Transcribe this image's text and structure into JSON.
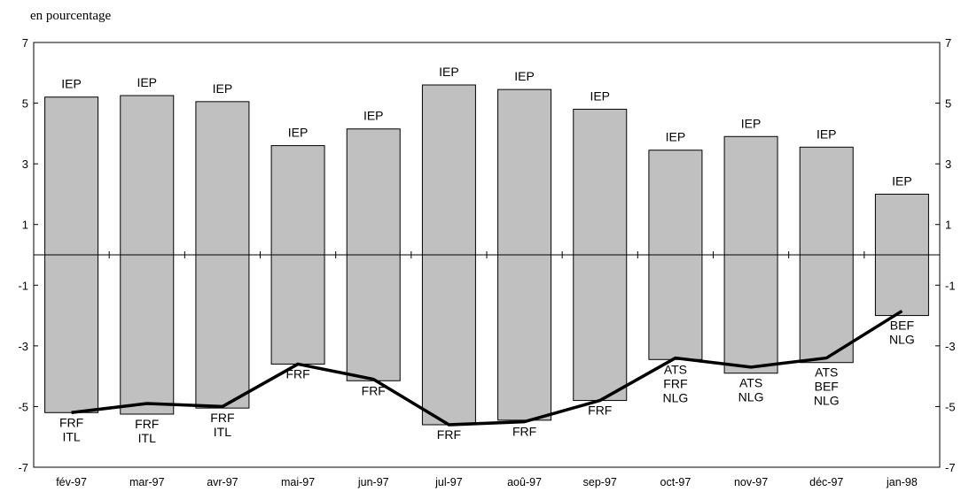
{
  "unit_label": "en pourcentage",
  "chart_data": {
    "type": "bar",
    "title": "",
    "xlabel": "",
    "ylabel": "en pourcentage",
    "ylim": [
      -7,
      7
    ],
    "yticks": [
      7,
      5,
      3,
      1,
      -1,
      -3,
      -5,
      -7
    ],
    "categories": [
      "fév-97",
      "mar-97",
      "avr-97",
      "mai-97",
      "jun-97",
      "jul-97",
      "aoû-97",
      "sep-97",
      "oct-97",
      "nov-97",
      "déc-97",
      "jan-98"
    ],
    "series": [
      {
        "role": "max",
        "values": [
          5.2,
          5.25,
          5.05,
          3.6,
          4.15,
          5.6,
          5.45,
          4.8,
          3.45,
          3.9,
          3.55,
          2.0
        ]
      },
      {
        "role": "min",
        "values": [
          -5.2,
          -5.25,
          -5.05,
          -3.6,
          -4.15,
          -5.6,
          -5.45,
          -4.8,
          -3.45,
          -3.9,
          -3.55,
          -2.0
        ]
      },
      {
        "role": "line",
        "values": [
          -5.2,
          -4.9,
          -5.0,
          -3.6,
          -4.1,
          -5.6,
          -5.5,
          -4.8,
          -3.4,
          -3.7,
          -3.4,
          -1.85
        ]
      }
    ],
    "top_labels": [
      [
        "IEP"
      ],
      [
        "IEP"
      ],
      [
        "IEP"
      ],
      [
        "IEP"
      ],
      [
        "IEP"
      ],
      [
        "IEP"
      ],
      [
        "IEP"
      ],
      [
        "IEP"
      ],
      [
        "IEP"
      ],
      [
        "IEP"
      ],
      [
        "IEP"
      ],
      [
        "IEP"
      ]
    ],
    "bottom_labels": [
      [
        "FRF",
        "ITL"
      ],
      [
        "FRF",
        "ITL"
      ],
      [
        "FRF",
        "ITL"
      ],
      [
        "FRF"
      ],
      [
        "FRF"
      ],
      [
        "FRF"
      ],
      [
        "FRF"
      ],
      [
        "FRF"
      ],
      [
        "ATS",
        "FRF",
        "NLG"
      ],
      [
        "ATS",
        "NLG"
      ],
      [
        "ATS",
        "BEF",
        "NLG"
      ],
      [
        "BEF",
        "NLG"
      ]
    ],
    "grid": false,
    "bar_color": "#c0c0c0",
    "line_color": "#000000"
  }
}
